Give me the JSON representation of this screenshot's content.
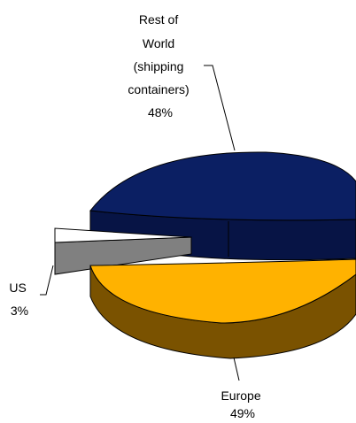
{
  "chart_data": {
    "type": "pie",
    "style": "3d exploded",
    "slices": [
      {
        "label_lines": [
          "Rest of",
          "World",
          "(shipping",
          "containers)"
        ],
        "value": 48,
        "value_label": "48%",
        "color": "#0b1f63",
        "side_color": "#071445"
      },
      {
        "label_lines": [
          "US"
        ],
        "value": 3,
        "value_label": "3%",
        "color": "#ffffff",
        "side_color": "#808080"
      },
      {
        "label_lines": [
          "Europe"
        ],
        "value": 49,
        "value_label": "49%",
        "color": "#ffb200",
        "side_color": "#7a5200"
      }
    ]
  }
}
